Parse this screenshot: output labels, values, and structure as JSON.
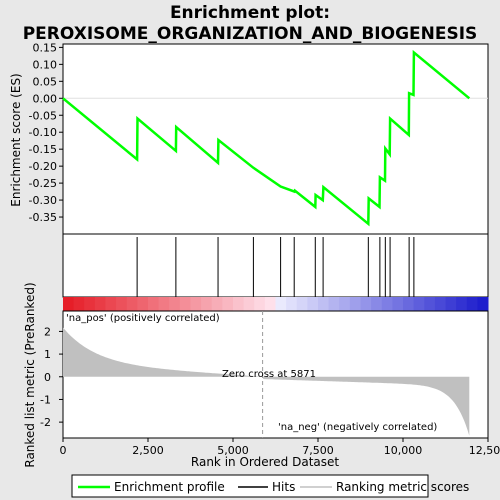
{
  "chart_data": {
    "type": "line",
    "title_line1": "Enrichment plot:",
    "title_line2": "PEROXISOME_ORGANIZATION_AND_BIOGENESIS",
    "ylabel_top": "Enrichment score (ES)",
    "ylabel_bottom": "Ranked list metric (PreRanked)",
    "xlabel": "Rank in Ordered Dataset",
    "xlim": [
      0,
      12500
    ],
    "es_ylim": [
      -0.4,
      0.16
    ],
    "metric_ylim": [
      -2.7,
      2.9
    ],
    "es_yticks": [
      "0.15",
      "0.10",
      "0.05",
      "0.00",
      "-0.05",
      "-0.10",
      "-0.15",
      "-0.20",
      "-0.25",
      "-0.30",
      "-0.35"
    ],
    "es_ytick_values": [
      0.15,
      0.1,
      0.05,
      0.0,
      -0.05,
      -0.1,
      -0.15,
      -0.2,
      -0.25,
      -0.3,
      -0.35
    ],
    "metric_yticks": [
      "2",
      "1",
      "0",
      "-1",
      "-2"
    ],
    "metric_ytick_values": [
      2,
      1,
      0,
      -1,
      -2
    ],
    "xticks": [
      "0",
      "2,500",
      "5,000",
      "7,500",
      "10,000",
      "12,500"
    ],
    "xtick_values": [
      0,
      2500,
      5000,
      7500,
      10000,
      12500
    ],
    "hits": [
      2180,
      3320,
      4560,
      5600,
      6400,
      6800,
      7420,
      7650,
      8980,
      9320,
      9480,
      9620,
      10180,
      10320
    ],
    "es_points": [
      [
        0,
        0.0
      ],
      [
        2180,
        -0.18
      ],
      [
        2190,
        -0.06
      ],
      [
        3320,
        -0.155
      ],
      [
        3330,
        -0.085
      ],
      [
        4560,
        -0.19
      ],
      [
        4570,
        -0.123
      ],
      [
        5600,
        -0.205
      ],
      [
        6400,
        -0.26
      ],
      [
        6810,
        -0.275
      ],
      [
        6820,
        -0.272
      ],
      [
        7420,
        -0.32
      ],
      [
        7430,
        -0.285
      ],
      [
        7640,
        -0.3
      ],
      [
        7660,
        -0.262
      ],
      [
        8980,
        -0.37
      ],
      [
        8990,
        -0.295
      ],
      [
        9310,
        -0.32
      ],
      [
        9320,
        -0.233
      ],
      [
        9470,
        -0.243
      ],
      [
        9480,
        -0.148
      ],
      [
        9610,
        -0.165
      ],
      [
        9620,
        -0.06
      ],
      [
        10170,
        -0.108
      ],
      [
        10180,
        0.015
      ],
      [
        10310,
        0.01
      ],
      [
        10320,
        0.135
      ],
      [
        11950,
        0.0
      ]
    ],
    "zero_cross": 5871,
    "zero_cross_label": "Zero cross at 5871",
    "pos_label": "'na_pos' (positively correlated)",
    "neg_label": "'na_neg' (negatively correlated)",
    "n_genes": 11950,
    "colors": {
      "es_line": "#00ff00",
      "hits": "#000000",
      "metric": "#c0c0c0",
      "pos_text": "#cc0000",
      "neg_text": "#0000cc"
    },
    "legend": [
      {
        "label": "Enrichment profile"
      },
      {
        "label": "Hits"
      },
      {
        "label": "Ranking metric scores"
      }
    ]
  }
}
